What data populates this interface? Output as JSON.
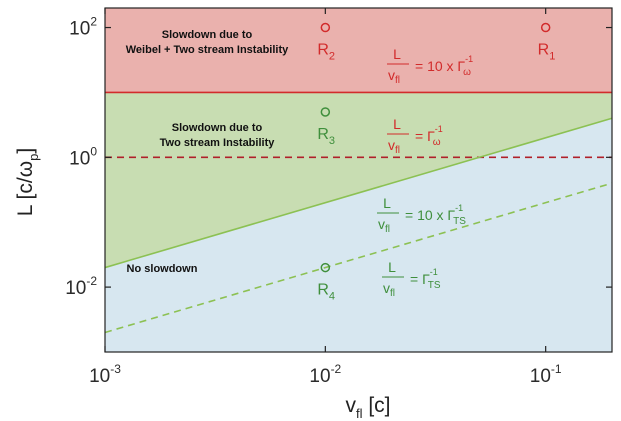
{
  "chart_data": {
    "type": "scatter",
    "xscale": "log",
    "yscale": "log",
    "xlim": [
      0.001,
      0.2
    ],
    "ylim": [
      0.001,
      200
    ],
    "xlabel": {
      "base": "v",
      "sub": "fl",
      "unit": " [c]"
    },
    "ylabel": "L [c/ω",
    "ylabel_sub": "p",
    "ylabel_end": "]",
    "xticks": [
      {
        "value": 0.001,
        "base": "10",
        "exp": "-3"
      },
      {
        "value": 0.01,
        "base": "10",
        "exp": "-2"
      },
      {
        "value": 0.1,
        "base": "10",
        "exp": "-1"
      }
    ],
    "yticks": [
      {
        "value": 0.01,
        "base": "10",
        "exp": "-2"
      },
      {
        "value": 1,
        "base": "10",
        "exp": "0"
      },
      {
        "value": 100,
        "base": "10",
        "exp": "2"
      }
    ],
    "colors": {
      "weibel_region": "#eab1ad",
      "two_stream_region": "#c8ddb2",
      "no_slowdown_region": "#d7e7f0",
      "red": "#d22b2b",
      "dark_red": "#b0202a",
      "green": "#8cc153",
      "label_green": "#3f8f3c"
    },
    "boundaries": [
      {
        "name": "L/v_fl = 10 x Γω^-1",
        "style": "solid",
        "color": "red",
        "x": [
          0.001,
          0.2
        ],
        "y": [
          10,
          10
        ]
      },
      {
        "name": "L/v_fl = Γω^-1",
        "style": "dashed",
        "color": "dark_red",
        "x": [
          0.001,
          0.2
        ],
        "y": [
          1,
          1
        ]
      },
      {
        "name": "L/v_fl = 10 x ΓTS^-1",
        "style": "solid",
        "color": "green",
        "x": [
          0.001,
          0.2
        ],
        "y": [
          0.02,
          4
        ]
      },
      {
        "name": "L/v_fl = ΓTS^-1",
        "style": "dashed",
        "color": "green",
        "x": [
          0.001,
          0.2
        ],
        "y": [
          0.002,
          0.4
        ]
      }
    ],
    "points": [
      {
        "label": "R",
        "sub": "1",
        "x": 0.1,
        "y": 100,
        "color": "red"
      },
      {
        "label": "R",
        "sub": "2",
        "x": 0.01,
        "y": 100,
        "color": "red"
      },
      {
        "label": "R",
        "sub": "3",
        "x": 0.01,
        "y": 5,
        "color": "label_green"
      },
      {
        "label": "R",
        "sub": "4",
        "x": 0.01,
        "y": 0.02,
        "color": "label_green"
      }
    ],
    "region_labels": [
      {
        "lines": [
          "Slowdown due to",
          "Weibel + Two stream Instability"
        ]
      },
      {
        "lines": [
          "Slowdown due to",
          "Two stream Instability"
        ]
      },
      {
        "lines": [
          "No slowdown"
        ]
      }
    ],
    "annotations": [
      {
        "num": "L",
        "den": "v",
        "den_sub": "fl",
        "eq": "= 10 x Γ",
        "sub": "ω",
        "sup": "-1",
        "color": "red"
      },
      {
        "num": "L",
        "den": "v",
        "den_sub": "fl",
        "eq": "= Γ",
        "sub": "ω",
        "sup": "-1",
        "color": "red"
      },
      {
        "num": "L",
        "den": "v",
        "den_sub": "fl",
        "eq": "= 10 x Γ",
        "sub": "TS",
        "sup": "-1",
        "color": "label_green"
      },
      {
        "num": "L",
        "den": "v",
        "den_sub": "fl",
        "eq": "= Γ",
        "sub": "TS",
        "sup": "-1",
        "color": "label_green"
      }
    ]
  }
}
